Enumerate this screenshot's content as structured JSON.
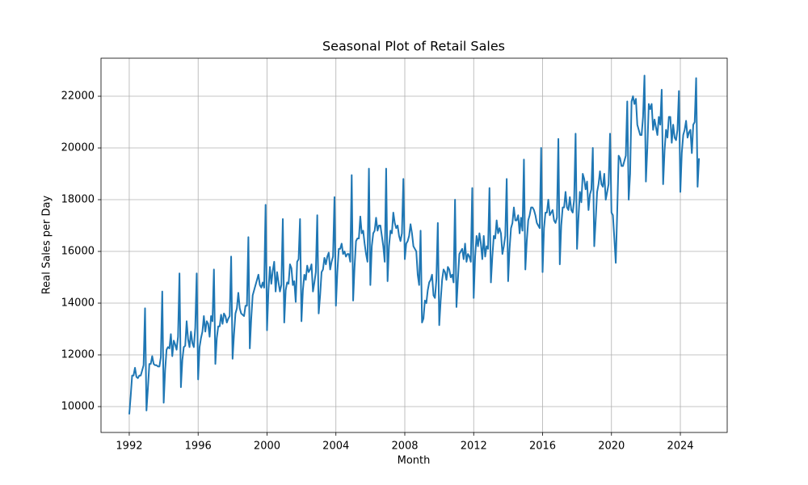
{
  "chart_data": {
    "type": "line",
    "title": "Seasonal Plot of Retail Sales",
    "x_label": "Month",
    "y_label": "Real Sales per Day",
    "xlim": [
      1990.36,
      2026.72
    ],
    "ylim": [
      9000,
      23470
    ],
    "xticks": [
      1992,
      1996,
      2000,
      2004,
      2008,
      2012,
      2016,
      2020,
      2024
    ],
    "yticks": [
      10000,
      12000,
      14000,
      16000,
      18000,
      20000,
      22000
    ],
    "grid": true,
    "x": [
      1992,
      1992.083,
      1992.167,
      1992.25,
      1992.333,
      1992.417,
      1992.5,
      1992.583,
      1992.667,
      1992.75,
      1992.833,
      1992.917,
      1993,
      1993.083,
      1993.167,
      1993.25,
      1993.333,
      1993.417,
      1993.5,
      1993.583,
      1993.667,
      1993.75,
      1993.833,
      1993.917,
      1994,
      1994.083,
      1994.167,
      1994.25,
      1994.333,
      1994.417,
      1994.5,
      1994.583,
      1994.667,
      1994.75,
      1994.833,
      1994.917,
      1995,
      1995.083,
      1995.167,
      1995.25,
      1995.333,
      1995.417,
      1995.5,
      1995.583,
      1995.667,
      1995.75,
      1995.833,
      1995.917,
      1996,
      1996.083,
      1996.167,
      1996.25,
      1996.333,
      1996.417,
      1996.5,
      1996.583,
      1996.667,
      1996.75,
      1996.833,
      1996.917,
      1997,
      1997.083,
      1997.167,
      1997.25,
      1997.333,
      1997.417,
      1997.5,
      1997.583,
      1997.667,
      1997.75,
      1997.833,
      1997.917,
      1998,
      1998.083,
      1998.167,
      1998.25,
      1998.333,
      1998.417,
      1998.5,
      1998.583,
      1998.667,
      1998.75,
      1998.833,
      1998.917,
      1999,
      1999.083,
      1999.167,
      1999.25,
      1999.333,
      1999.417,
      1999.5,
      1999.583,
      1999.667,
      1999.75,
      1999.833,
      1999.917,
      2000,
      2000.083,
      2000.167,
      2000.25,
      2000.333,
      2000.417,
      2000.5,
      2000.583,
      2000.667,
      2000.75,
      2000.833,
      2000.917,
      2001,
      2001.083,
      2001.167,
      2001.25,
      2001.333,
      2001.417,
      2001.5,
      2001.583,
      2001.667,
      2001.75,
      2001.833,
      2001.917,
      2002,
      2002.083,
      2002.167,
      2002.25,
      2002.333,
      2002.417,
      2002.5,
      2002.583,
      2002.667,
      2002.75,
      2002.833,
      2002.917,
      2003,
      2003.083,
      2003.167,
      2003.25,
      2003.333,
      2003.417,
      2003.5,
      2003.583,
      2003.667,
      2003.75,
      2003.833,
      2003.917,
      2004,
      2004.083,
      2004.167,
      2004.25,
      2004.333,
      2004.417,
      2004.5,
      2004.583,
      2004.667,
      2004.75,
      2004.833,
      2004.917,
      2005,
      2005.083,
      2005.167,
      2005.25,
      2005.333,
      2005.417,
      2005.5,
      2005.583,
      2005.667,
      2005.75,
      2005.833,
      2005.917,
      2006,
      2006.083,
      2006.167,
      2006.25,
      2006.333,
      2006.417,
      2006.5,
      2006.583,
      2006.667,
      2006.75,
      2006.833,
      2006.917,
      2007,
      2007.083,
      2007.167,
      2007.25,
      2007.333,
      2007.417,
      2007.5,
      2007.583,
      2007.667,
      2007.75,
      2007.833,
      2007.917,
      2008,
      2008.083,
      2008.167,
      2008.25,
      2008.333,
      2008.417,
      2008.5,
      2008.583,
      2008.667,
      2008.75,
      2008.833,
      2008.917,
      2009,
      2009.083,
      2009.167,
      2009.25,
      2009.333,
      2009.417,
      2009.5,
      2009.583,
      2009.667,
      2009.75,
      2009.833,
      2009.917,
      2010,
      2010.083,
      2010.167,
      2010.25,
      2010.333,
      2010.417,
      2010.5,
      2010.583,
      2010.667,
      2010.75,
      2010.833,
      2010.917,
      2011,
      2011.083,
      2011.167,
      2011.25,
      2011.333,
      2011.417,
      2011.5,
      2011.583,
      2011.667,
      2011.75,
      2011.833,
      2011.917,
      2012,
      2012.083,
      2012.167,
      2012.25,
      2012.333,
      2012.417,
      2012.5,
      2012.583,
      2012.667,
      2012.75,
      2012.833,
      2012.917,
      2013,
      2013.083,
      2013.167,
      2013.25,
      2013.333,
      2013.417,
      2013.5,
      2013.583,
      2013.667,
      2013.75,
      2013.833,
      2013.917,
      2014,
      2014.083,
      2014.167,
      2014.25,
      2014.333,
      2014.417,
      2014.5,
      2014.583,
      2014.667,
      2014.75,
      2014.833,
      2014.917,
      2015,
      2015.083,
      2015.167,
      2015.25,
      2015.333,
      2015.417,
      2015.5,
      2015.583,
      2015.667,
      2015.75,
      2015.833,
      2015.917,
      2016,
      2016.083,
      2016.167,
      2016.25,
      2016.333,
      2016.417,
      2016.5,
      2016.583,
      2016.667,
      2016.75,
      2016.833,
      2016.917,
      2017,
      2017.083,
      2017.167,
      2017.25,
      2017.333,
      2017.417,
      2017.5,
      2017.583,
      2017.667,
      2017.75,
      2017.833,
      2017.917,
      2018,
      2018.083,
      2018.167,
      2018.25,
      2018.333,
      2018.417,
      2018.5,
      2018.583,
      2018.667,
      2018.75,
      2018.833,
      2018.917,
      2019,
      2019.083,
      2019.167,
      2019.25,
      2019.333,
      2019.417,
      2019.5,
      2019.583,
      2019.667,
      2019.75,
      2019.833,
      2019.917,
      2020,
      2020.083,
      2020.167,
      2020.25,
      2020.333,
      2020.417,
      2020.5,
      2020.583,
      2020.667,
      2020.75,
      2020.833,
      2020.917,
      2021,
      2021.083,
      2021.167,
      2021.25,
      2021.333,
      2021.417,
      2021.5,
      2021.583,
      2021.667,
      2021.75,
      2021.833,
      2021.917,
      2022,
      2022.083,
      2022.167,
      2022.25,
      2022.333,
      2022.417,
      2022.5,
      2022.583,
      2022.667,
      2022.75,
      2022.833,
      2022.917,
      2023,
      2023.083,
      2023.167,
      2023.25,
      2023.333,
      2023.417,
      2023.5,
      2023.583,
      2023.667,
      2023.75,
      2023.833,
      2023.917,
      2024,
      2024.083,
      2024.167,
      2024.25,
      2024.333,
      2024.417,
      2024.5,
      2024.583,
      2024.667,
      2024.75,
      2024.833,
      2024.917,
      2025,
      2025.083
    ],
    "series": [
      {
        "color": "#1f77b4",
        "values": [
          9700,
          10400,
          11200,
          11200,
          11500,
          11150,
          11100,
          11200,
          11200,
          11400,
          11600,
          13800,
          9850,
          10700,
          11650,
          11650,
          11950,
          11650,
          11600,
          11600,
          11550,
          11550,
          11900,
          14450,
          10150,
          11400,
          12200,
          12300,
          12250,
          12800,
          11950,
          12550,
          12400,
          12200,
          12700,
          15150,
          10750,
          11800,
          12300,
          12350,
          13300,
          12600,
          12300,
          12900,
          12450,
          12300,
          13050,
          15150,
          11050,
          12300,
          12650,
          12900,
          13500,
          12900,
          13300,
          13200,
          12700,
          13500,
          13300,
          15300,
          11650,
          12650,
          13100,
          13100,
          13550,
          13200,
          13600,
          13500,
          13250,
          13400,
          13500,
          15800,
          11850,
          12800,
          13600,
          13800,
          14400,
          13800,
          13600,
          13550,
          13500,
          13900,
          13900,
          16550,
          12250,
          13400,
          14300,
          14500,
          14700,
          14900,
          15100,
          14700,
          14600,
          14800,
          14600,
          17800,
          12950,
          14500,
          15400,
          14750,
          15250,
          15600,
          14450,
          15200,
          14800,
          14450,
          14700,
          17250,
          13250,
          14500,
          14800,
          14750,
          15500,
          15350,
          14700,
          14850,
          14050,
          15600,
          15700,
          17250,
          13300,
          14500,
          15100,
          14900,
          15450,
          15200,
          15300,
          15500,
          14450,
          14800,
          15200,
          17400,
          13600,
          14300,
          15200,
          15300,
          15750,
          15500,
          15800,
          15950,
          15300,
          15600,
          15800,
          18100,
          13900,
          15200,
          16100,
          16100,
          16300,
          15900,
          16000,
          15800,
          15900,
          15900,
          15600,
          18950,
          14100,
          15400,
          16400,
          16500,
          16500,
          17350,
          16700,
          16800,
          16300,
          15900,
          15600,
          19200,
          14700,
          16200,
          16700,
          16800,
          17300,
          16800,
          17000,
          17000,
          16600,
          16200,
          15600,
          19200,
          14850,
          16200,
          16800,
          16700,
          17500,
          17100,
          16900,
          17000,
          16600,
          16400,
          16700,
          18800,
          15700,
          16300,
          16400,
          16600,
          17050,
          16700,
          16200,
          16100,
          16000,
          15100,
          14700,
          16800,
          13250,
          13400,
          14100,
          14000,
          14500,
          14800,
          14900,
          15100,
          14300,
          14200,
          14900,
          17100,
          13150,
          14100,
          14900,
          15300,
          15200,
          14900,
          15400,
          15300,
          15000,
          15100,
          14800,
          18000,
          13850,
          14900,
          15900,
          16000,
          16100,
          15700,
          16300,
          15600,
          15900,
          15800,
          15600,
          18450,
          14200,
          15800,
          16600,
          16200,
          16700,
          16300,
          15700,
          16600,
          15800,
          16200,
          16100,
          18450,
          14800,
          15800,
          16600,
          16500,
          17200,
          16700,
          16900,
          16700,
          15900,
          16200,
          16600,
          18800,
          14850,
          16100,
          16900,
          17100,
          17700,
          17200,
          17200,
          17400,
          16700,
          17300,
          16800,
          19550,
          15300,
          16400,
          17200,
          17400,
          17700,
          17700,
          17600,
          17400,
          17100,
          17000,
          16900,
          20000,
          15200,
          16900,
          17500,
          17500,
          18000,
          17400,
          17500,
          17600,
          17200,
          17100,
          17300,
          20350,
          15500,
          17000,
          17700,
          17700,
          18300,
          17700,
          17600,
          18100,
          17600,
          17500,
          18000,
          20550,
          16100,
          17300,
          18300,
          17900,
          19000,
          18800,
          18400,
          18700,
          17600,
          18200,
          18400,
          20000,
          16200,
          17200,
          18300,
          18600,
          19100,
          18600,
          18500,
          19000,
          18000,
          18300,
          18600,
          20550,
          17500,
          17400,
          16500,
          15560,
          17500,
          19700,
          19600,
          19300,
          19300,
          19500,
          19700,
          21800,
          18000,
          19000,
          21800,
          22000,
          21700,
          21900,
          20900,
          20700,
          20500,
          20500,
          21200,
          22800,
          18700,
          20000,
          21700,
          21500,
          21700,
          20700,
          21100,
          20800,
          20500,
          21200,
          20900,
          22250,
          18600,
          19900,
          20700,
          20400,
          21200,
          21200,
          20200,
          20900,
          20400,
          20300,
          20700,
          22200,
          18300,
          19800,
          20500,
          20700,
          21050,
          20400,
          20600,
          20700,
          19800,
          20900,
          21000,
          22700,
          18500,
          19600
        ]
      }
    ]
  }
}
